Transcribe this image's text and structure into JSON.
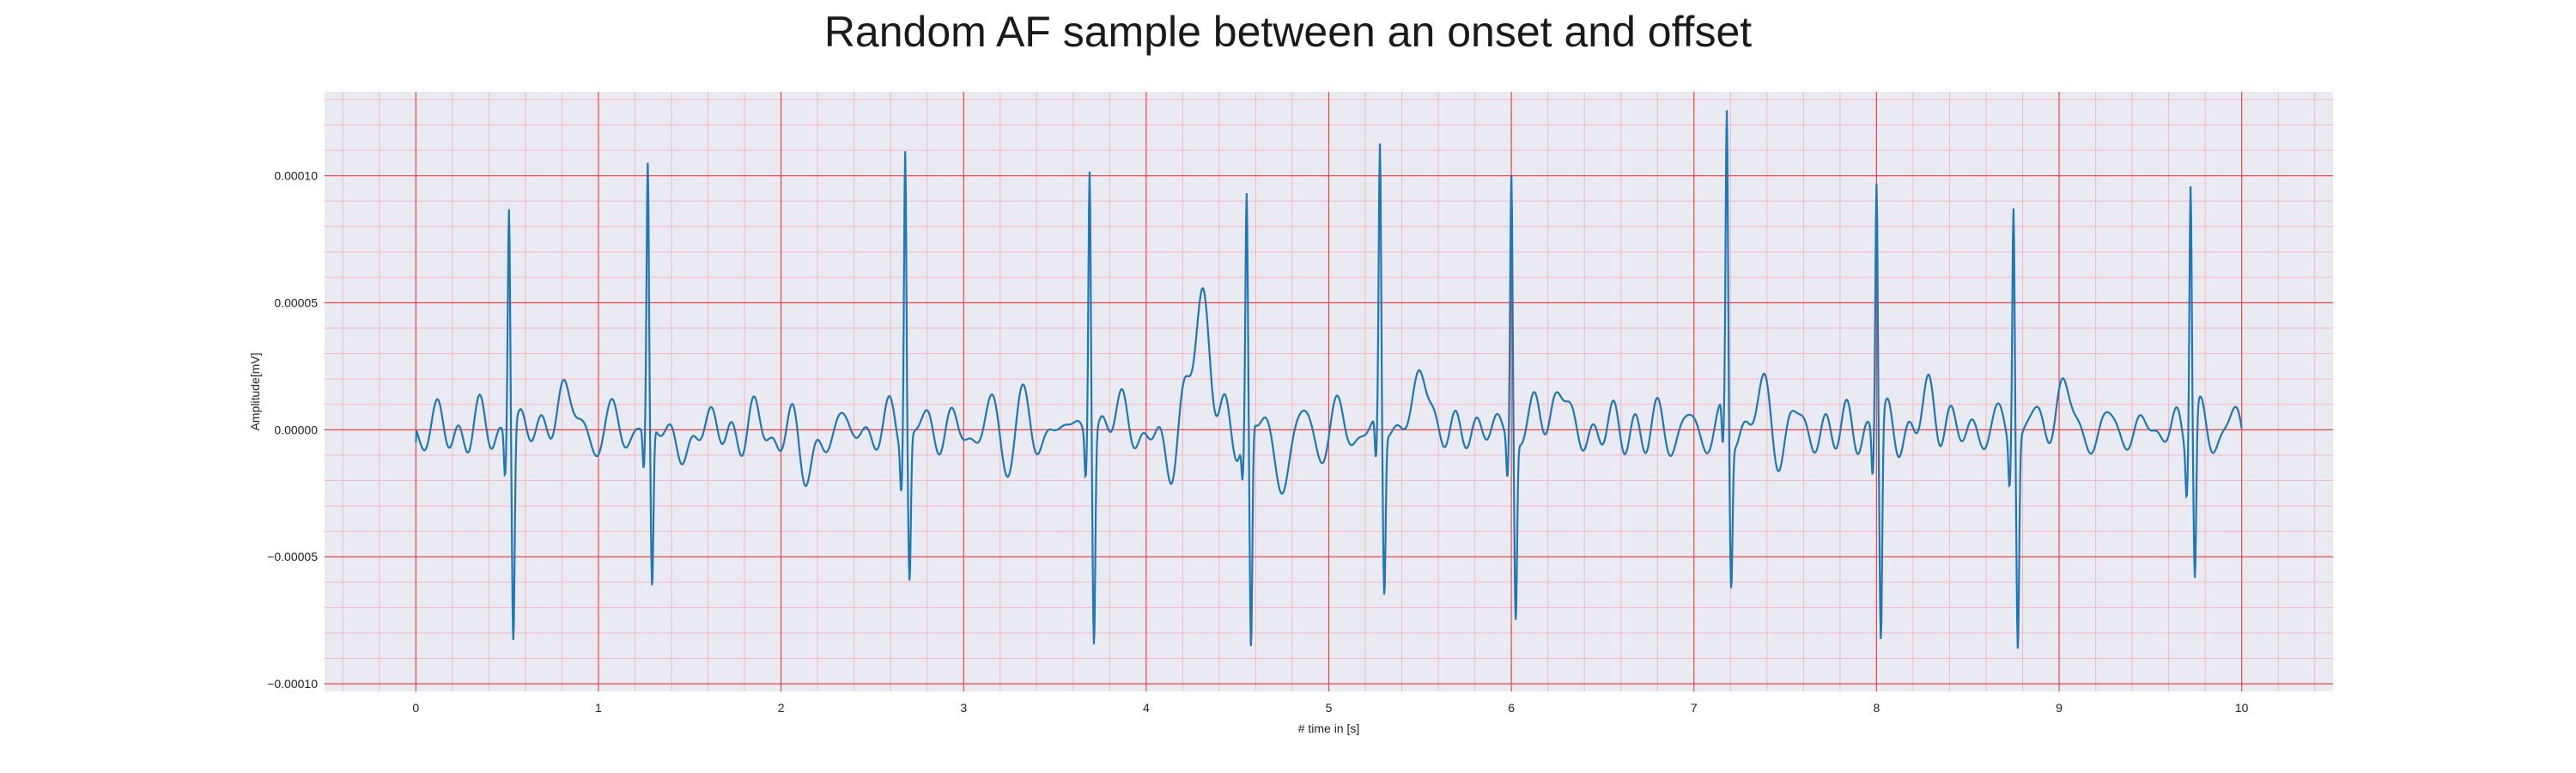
{
  "chart_data": {
    "type": "line",
    "title": "Random AF sample between an onset and offset",
    "xlabel": "# time in [s]",
    "ylabel": "Amplitude[mV]",
    "xlim": [
      -0.5,
      10.5
    ],
    "ylim": [
      -0.000103,
      0.000133
    ],
    "x_ticks": [
      0,
      1,
      2,
      3,
      4,
      5,
      6,
      7,
      8,
      9,
      10
    ],
    "x_tick_labels": [
      "0",
      "1",
      "2",
      "3",
      "4",
      "5",
      "6",
      "7",
      "8",
      "9",
      "10"
    ],
    "y_ticks": [
      -0.0001,
      -5e-05,
      0,
      5e-05,
      0.0001
    ],
    "y_tick_labels": [
      "−0.00010",
      "−0.00005",
      "0.00000",
      "0.00005",
      "0.00010"
    ],
    "grid": true,
    "minor_grid": true,
    "legend": "none",
    "colors": {
      "line": "#1f77b4",
      "background": "#eaeaf2",
      "major_grid": "#e8474a",
      "minor_grid": "#f4b6bd"
    },
    "beats": [
      {
        "t": 0.51,
        "peak": 9.3e-05,
        "trough": -8.1e-05
      },
      {
        "t": 1.27,
        "peak": 0.000104,
        "trough": -6.3e-05
      },
      {
        "t": 2.68,
        "peak": 0.000118,
        "trough": -5.6e-05
      },
      {
        "t": 3.69,
        "peak": 0.000109,
        "trough": -8e-05
      },
      {
        "t": 4.55,
        "peak": 9e-05,
        "trough": -9e-05
      },
      {
        "t": 5.28,
        "peak": 0.00011,
        "trough": -6.4e-05
      },
      {
        "t": 6.0,
        "peak": 0.000105,
        "trough": -7e-05
      },
      {
        "t": 7.18,
        "peak": 0.000122,
        "trough": -5.8e-05
      },
      {
        "t": 8.0,
        "peak": 0.000103,
        "trough": -8.3e-05
      },
      {
        "t": 8.75,
        "peak": 9.7e-05,
        "trough": -8e-05
      },
      {
        "t": 9.72,
        "peak": 0.000106,
        "trough": -6.1e-05
      }
    ],
    "waves": [
      {
        "t": 0.8,
        "amp": 1.7e-05,
        "width": 0.05
      },
      {
        "t": 1.45,
        "amp": -1e-05,
        "width": 0.05
      },
      {
        "t": 2.15,
        "amp": -1.6e-05,
        "width": 0.06
      },
      {
        "t": 3.85,
        "amp": 8e-06,
        "width": 0.05
      },
      {
        "t": 4.1,
        "amp": -1.2e-05,
        "width": 0.06
      },
      {
        "t": 4.3,
        "amp": 5e-05,
        "width": 0.07
      },
      {
        "t": 4.75,
        "amp": -1.8e-05,
        "width": 0.05
      },
      {
        "t": 5.5,
        "amp": 2.5e-05,
        "width": 0.05
      },
      {
        "t": 6.23,
        "amp": 2e-05,
        "width": 0.05
      },
      {
        "t": 7.35,
        "amp": 1.2e-05,
        "width": 0.05
      },
      {
        "t": 8.3,
        "amp": 1.4e-05,
        "width": 0.05
      },
      {
        "t": 9.0,
        "amp": 1.8e-05,
        "width": 0.05
      }
    ],
    "sampling_rate_hz": 300
  }
}
